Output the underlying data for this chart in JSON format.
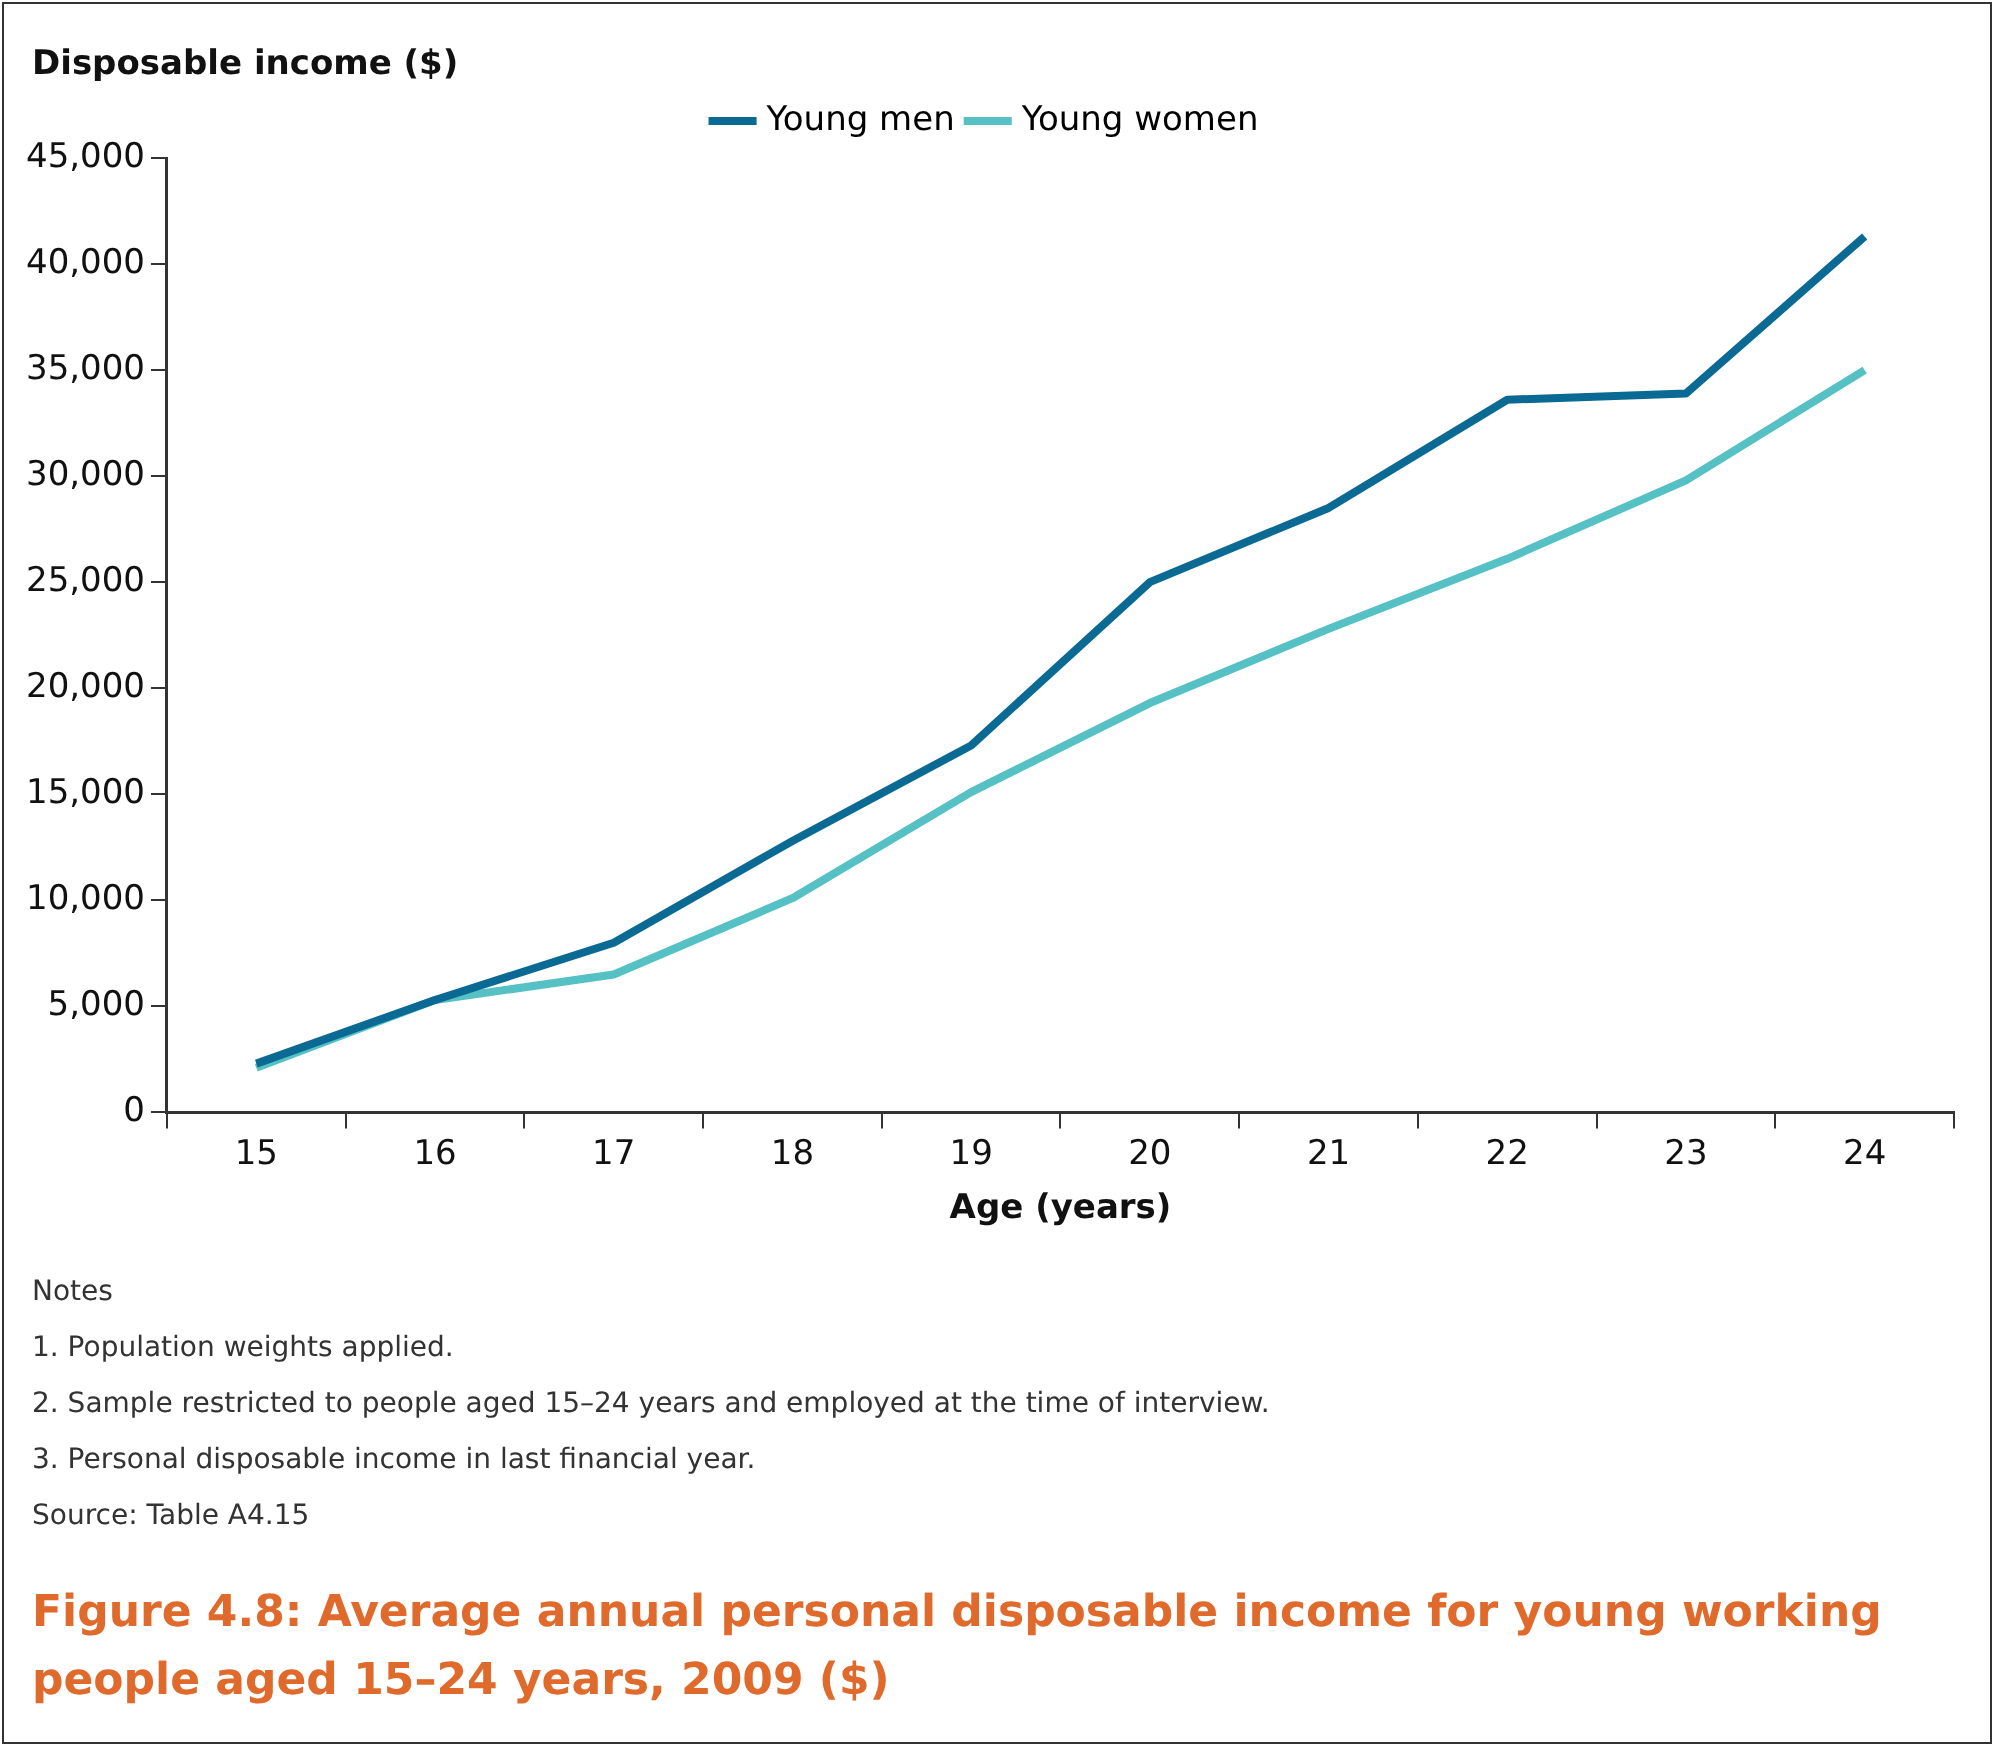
{
  "chart_data": {
    "type": "line",
    "title": "Figure 4.8: Average annual personal disposable income for young working people aged 15–24 years, 2009 ($)",
    "ylabel": "Disposable income ($)",
    "xlabel": "Age (years)",
    "categories": [
      "15",
      "16",
      "17",
      "18",
      "19",
      "20",
      "21",
      "22",
      "23",
      "24"
    ],
    "series": [
      {
        "name": "Young men",
        "color": "#0b6a93",
        "values": [
          2300,
          5300,
          8000,
          12800,
          17300,
          25000,
          28500,
          33600,
          33900,
          41300
        ]
      },
      {
        "name": "Young women",
        "color": "#55c1c4",
        "values": [
          2100,
          5300,
          6500,
          10100,
          15100,
          19300,
          22800,
          26100,
          29800,
          35000
        ]
      }
    ],
    "ylim": [
      0,
      45000
    ],
    "yticks": [
      {
        "value": 0,
        "label": "0"
      },
      {
        "value": 5000,
        "label": "5,000"
      },
      {
        "value": 10000,
        "label": "10,000"
      },
      {
        "value": 15000,
        "label": "15,000"
      },
      {
        "value": 20000,
        "label": "20,000"
      },
      {
        "value": 25000,
        "label": "25,000"
      },
      {
        "value": 30000,
        "label": "30,000"
      },
      {
        "value": 35000,
        "label": "35,000"
      },
      {
        "value": 40000,
        "label": "40,000"
      },
      {
        "value": 45000,
        "label": "45,000"
      }
    ],
    "grid": false,
    "legend": "top",
    "marker": "none",
    "line_style": "solid",
    "annotations": [
      "Notes",
      "1.   Population weights applied.",
      "2.   Sample restricted to people aged 15–24 years and employed at the time of interview.",
      "3.   Personal disposable income in last financial year.",
      "Source: Table A4.15"
    ]
  }
}
